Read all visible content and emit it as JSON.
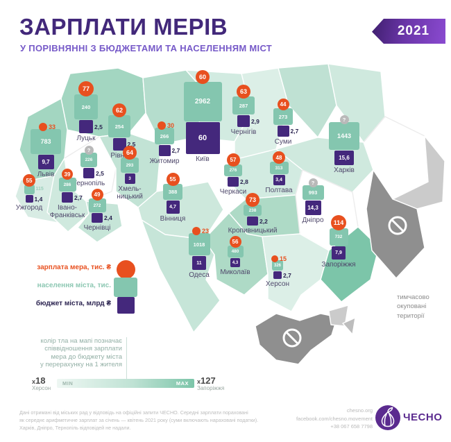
{
  "header": {
    "title": "ЗАРПЛАТИ МЕРІВ",
    "subtitle": "У ПОРІВНЯННІ З БЮДЖЕТАМИ ТА НАСЕЛЕННЯМ МІСТ",
    "year_badge": "2021"
  },
  "legend": {
    "salary_label": "зарплата мера, тис. ₴",
    "population_label": "населення міста, тис.",
    "budget_label": "бюджет міста, млрд ₴"
  },
  "note": {
    "text": "колір тла на мапі позначає\nспіввідношення зарплати\nмера до бюджету міста\nу перерахунку на 1 жителя"
  },
  "scale": {
    "min_label": "MIN",
    "max_label": "MAX",
    "min_value": "x18",
    "min_city": "Херсон",
    "max_value": "x127",
    "max_city": "Запоріжжя"
  },
  "occupied_label": "тимчасово\nокуповані\nтериторії",
  "footer": {
    "disclaimer": "Дані отримані від міських рад у відповідь на офіційні запити ЧЕСНО. Середні зарплати пораховані\nяк середнє арифметичне зарплат за січень — квітень 2021 року (суми включають нараховані податки).\nХарків, Дніпро, Тернопіль відповідей не надали.",
    "website": "chesno.org",
    "facebook": "facebook.com/chesno.movement",
    "phone": "+38 067 658 7798",
    "org_name": "ЧЕСНО"
  },
  "icons": {
    "occupied_marker": "no-entry-icon",
    "org_logo": "garlic-icon"
  },
  "colors": {
    "salary_orange": "#e8501f",
    "population_teal": "#84c6af",
    "budget_purple": "#44287c",
    "title_purple": "#42287a",
    "subtitle_purple": "#7659c8",
    "ribbon_purple": "#6a35a8",
    "unknown_gray": "#b9b9b9",
    "occupied_dark_gray": "#8f8f8f",
    "occupied_light_gray": "#cbcbcb",
    "scale_min": "#eef7f3",
    "scale_max": "#7cc5a9",
    "logo_purple": "#5b2b8f"
  },
  "map": {
    "cities": [
      {
        "id": "lutsk",
        "name": "Луцьк",
        "salary": "77",
        "population": "240",
        "budget": "2,5"
      },
      {
        "id": "rivne",
        "name": "Рівне",
        "salary": "62",
        "population": "254",
        "budget": "2,5"
      },
      {
        "id": "zhytomyr",
        "name": "Житомир",
        "salary": "30",
        "population": "266",
        "budget": "2,7"
      },
      {
        "id": "kyiv",
        "name": "Київ",
        "salary": "60",
        "population": "2962",
        "budget": "60"
      },
      {
        "id": "chernihiv",
        "name": "Чернігів",
        "salary": "63",
        "population": "287",
        "budget": "2,9"
      },
      {
        "id": "sumy",
        "name": "Суми",
        "salary": "44",
        "population": "273",
        "budget": "2,7"
      },
      {
        "id": "kharkiv",
        "name": "Харків",
        "salary": "?",
        "population": "1443",
        "budget": "15,6"
      },
      {
        "id": "lviv",
        "name": "Львів",
        "salary": "33",
        "population": "783",
        "budget": "9,7"
      },
      {
        "id": "ternopil",
        "name": "Тернопіль",
        "salary": "?",
        "population": "226",
        "budget": "2,5"
      },
      {
        "id": "khmelnytskyi",
        "name": "Хмель-\nницький",
        "salary": "64",
        "population": "293",
        "budget": "3"
      },
      {
        "id": "uzhhorod",
        "name": "Ужгород",
        "salary": "55",
        "population": "115",
        "budget": "1,4"
      },
      {
        "id": "ivanofrankivsk",
        "name": "Івано-\nФранківськ",
        "salary": "39",
        "population": "286",
        "budget": "2,7"
      },
      {
        "id": "chernivtsi",
        "name": "Чернівці",
        "salary": "49",
        "population": "272",
        "budget": "2,4"
      },
      {
        "id": "vinnytsia",
        "name": "Вінниця",
        "salary": "55",
        "population": "388",
        "budget": "4,7"
      },
      {
        "id": "cherkasy",
        "name": "Черкаси",
        "salary": "57",
        "population": "276",
        "budget": "2,8"
      },
      {
        "id": "poltava",
        "name": "Полтава",
        "salary": "48",
        "population": "313",
        "budget": "3,4"
      },
      {
        "id": "kropyvnytskyi",
        "name": "Кропивницький",
        "salary": "73",
        "population": "238",
        "budget": "2,2"
      },
      {
        "id": "dnipro",
        "name": "Дніпро",
        "salary": "?",
        "population": "993",
        "budget": "14,3"
      },
      {
        "id": "zaporizhzhia",
        "name": "Запоріжжя",
        "salary": "114",
        "population": "732",
        "budget": "7,9"
      },
      {
        "id": "odesa",
        "name": "Одеса",
        "salary": "23",
        "population": "1018",
        "budget": "11"
      },
      {
        "id": "mykolaiv",
        "name": "Миколаїв",
        "salary": "56",
        "population": "480",
        "budget": "4,3"
      },
      {
        "id": "kherson",
        "name": "Херсон",
        "salary": "15",
        "population": "326",
        "budget": "2,7"
      }
    ],
    "regions": [
      {
        "id": "volyn",
        "fill": "#a3d6c1"
      },
      {
        "id": "rivne",
        "fill": "#b5ddcd"
      },
      {
        "id": "zhytomyr",
        "fill": "#d2ebe1"
      },
      {
        "id": "kyiv_oblast",
        "fill": "#dcefe7"
      },
      {
        "id": "chernihiv",
        "fill": "#bfe1d3"
      },
      {
        "id": "sumy",
        "fill": "#cfe9de"
      },
      {
        "id": "kharkiv",
        "fill": "#ffffff"
      },
      {
        "id": "lviv",
        "fill": "#a3d6c1"
      },
      {
        "id": "ternopil",
        "fill": "#ffffff"
      },
      {
        "id": "khmelnytskyi",
        "fill": "#c2e3d5"
      },
      {
        "id": "zakarpattia",
        "fill": "#d8ece4"
      },
      {
        "id": "ivanofrankivsk",
        "fill": "#cfe9de"
      },
      {
        "id": "chernivtsi",
        "fill": "#c6e5d8"
      },
      {
        "id": "vinnytsia",
        "fill": "#cde8dc"
      },
      {
        "id": "cherkasy",
        "fill": "#d2ebe1"
      },
      {
        "id": "poltava",
        "fill": "#cfe9de"
      },
      {
        "id": "kirovohrad",
        "fill": "#aedac6"
      },
      {
        "id": "dnipro",
        "fill": "#ffffff"
      },
      {
        "id": "zaporizhzhia",
        "fill": "#7cc5a9"
      },
      {
        "id": "luhansk_occupied",
        "fill": "#cbcbcb"
      },
      {
        "id": "donetsk_occupied",
        "fill": "#8f8f8f"
      },
      {
        "id": "odesa",
        "fill": "#c6e5d8"
      },
      {
        "id": "mykolaiv",
        "fill": "#aedac6"
      },
      {
        "id": "kherson",
        "fill": "#dcefe7"
      },
      {
        "id": "crimea_occupied",
        "fill": "#8f8f8f"
      },
      {
        "id": "syvash_fragment",
        "fill": "#cbcbcb"
      },
      {
        "id": "azov_fragment",
        "fill": "#bdbdbd"
      }
    ]
  }
}
